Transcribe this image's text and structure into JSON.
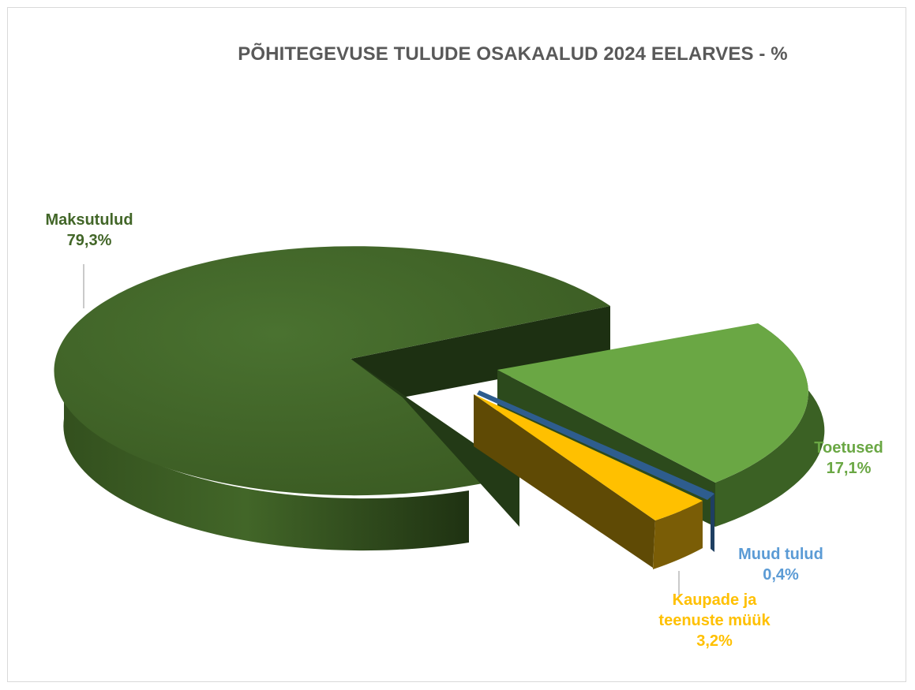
{
  "chart_data": {
    "type": "pie",
    "title": "PÕHITEGEVUSE TULUDE OSAKAALUD 2024 EELARVES - %",
    "slices": [
      {
        "name": "Maksutulud",
        "value": 79.3,
        "value_label": "79,3%",
        "color": "#426628"
      },
      {
        "name": "Toetused",
        "value": 17.1,
        "value_label": "17,1%",
        "color": "#6aa744"
      },
      {
        "name": "Muud tulud",
        "value": 0.4,
        "value_label": "0,4%",
        "color": "#2e5d8e",
        "label_color": "#5b9bd5"
      },
      {
        "name": "Kaupade ja teenuste müük",
        "value": 3.2,
        "value_label": "3,2%",
        "color": "#ffc000"
      }
    ],
    "legend": "none",
    "grid": false,
    "style": "3d-exploded"
  }
}
